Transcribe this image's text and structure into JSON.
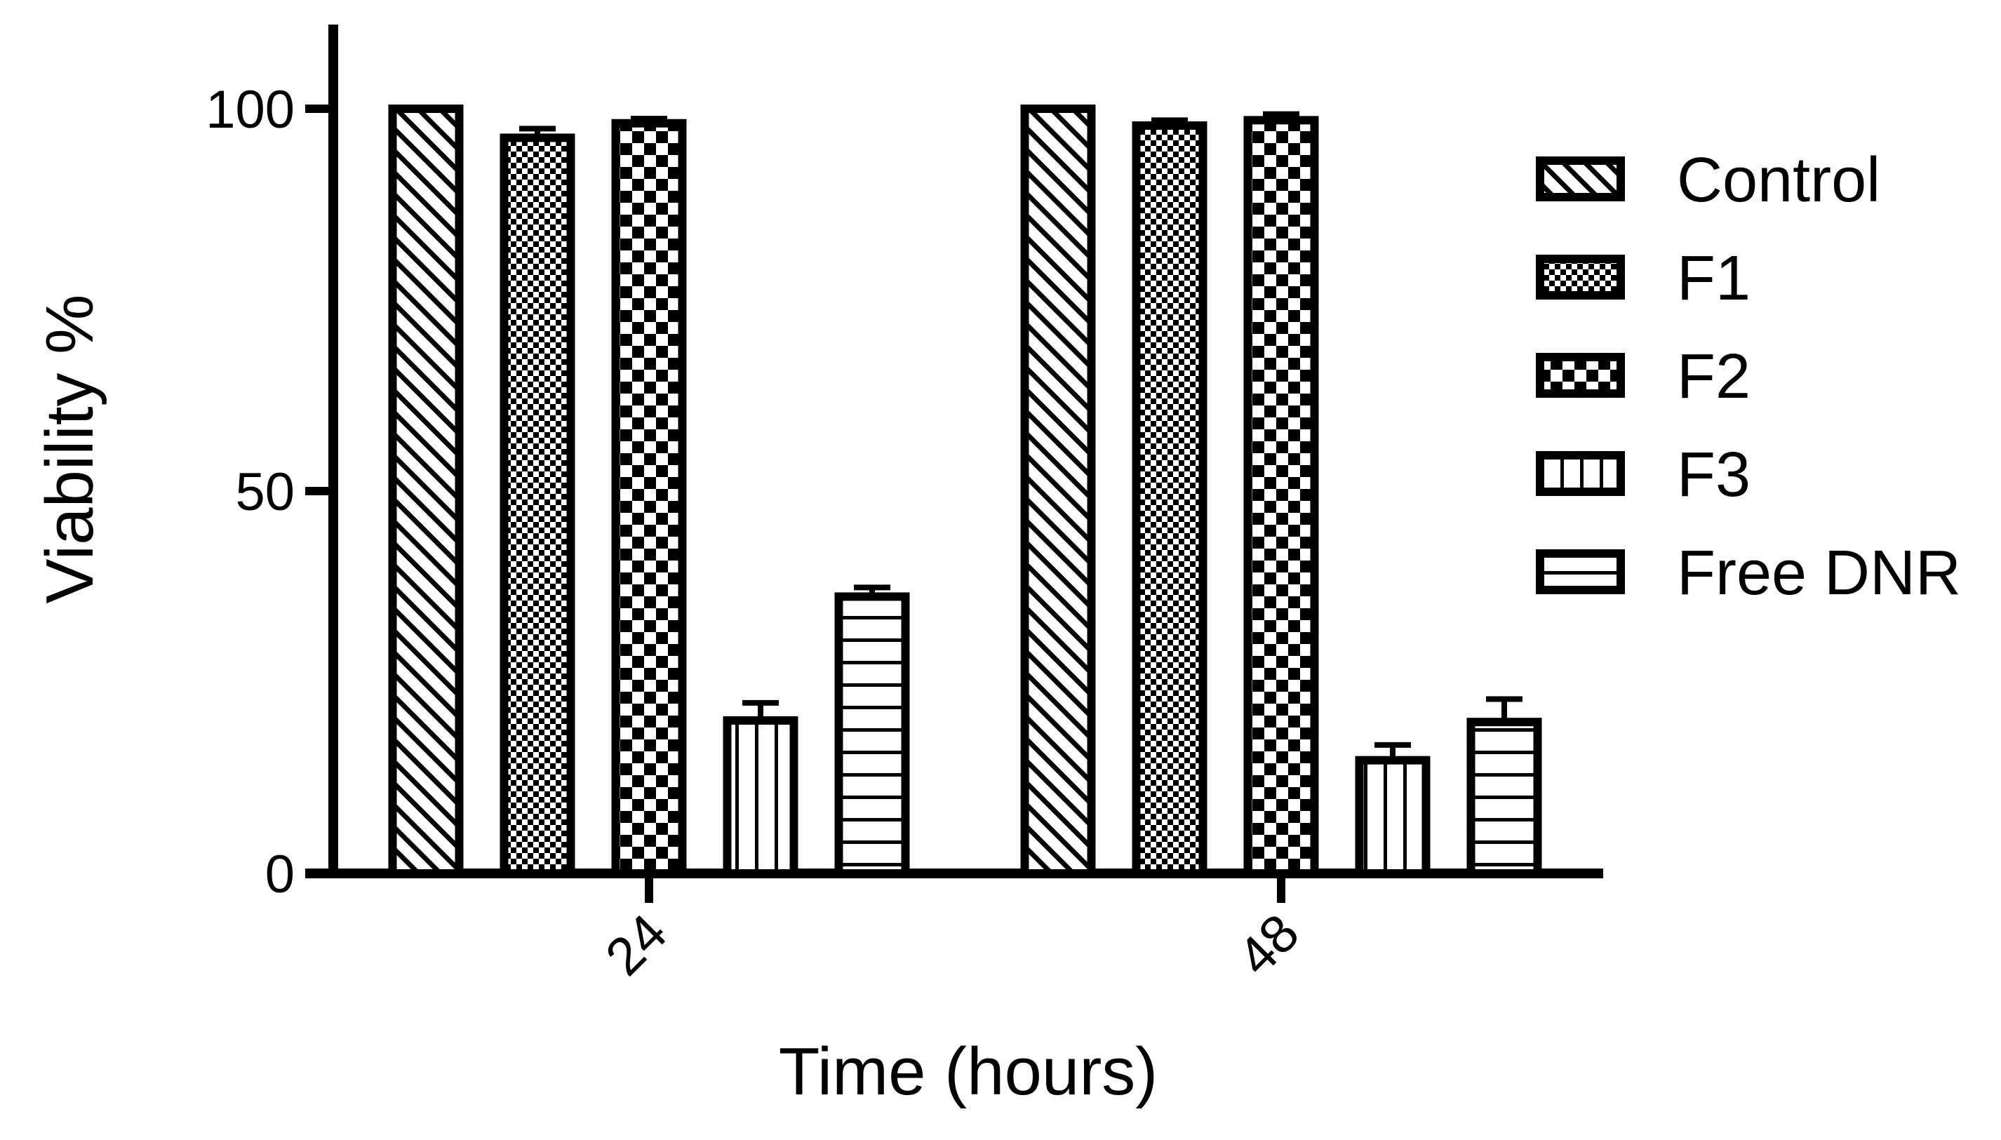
{
  "chart_data": {
    "type": "bar",
    "title": "",
    "xlabel": "Time (hours)",
    "ylabel": "Viability %",
    "categories": [
      "24",
      "48"
    ],
    "ylim": [
      0,
      110
    ],
    "yticks": [
      0,
      50,
      100
    ],
    "grid": false,
    "legend_position": "right",
    "series": [
      {
        "name": "Control",
        "pattern": "diagonal",
        "values": [
          100,
          100
        ],
        "errors": [
          0,
          0
        ]
      },
      {
        "name": "F1",
        "pattern": "fine-checker",
        "values": [
          96.2,
          97.8
        ],
        "errors": [
          1.2,
          0.7
        ]
      },
      {
        "name": "F2",
        "pattern": "coarse-checker",
        "values": [
          98.1,
          98.5
        ],
        "errors": [
          0.6,
          0.8
        ]
      },
      {
        "name": "F3",
        "pattern": "vertical",
        "values": [
          20,
          14.8
        ],
        "errors": [
          2.3,
          2.0
        ]
      },
      {
        "name": "Free DNR",
        "pattern": "horizontal",
        "values": [
          36.2,
          19.8
        ],
        "errors": [
          1.2,
          3.0
        ]
      }
    ],
    "colors": {
      "stroke": "#000000",
      "fill": "#ffffff"
    }
  }
}
